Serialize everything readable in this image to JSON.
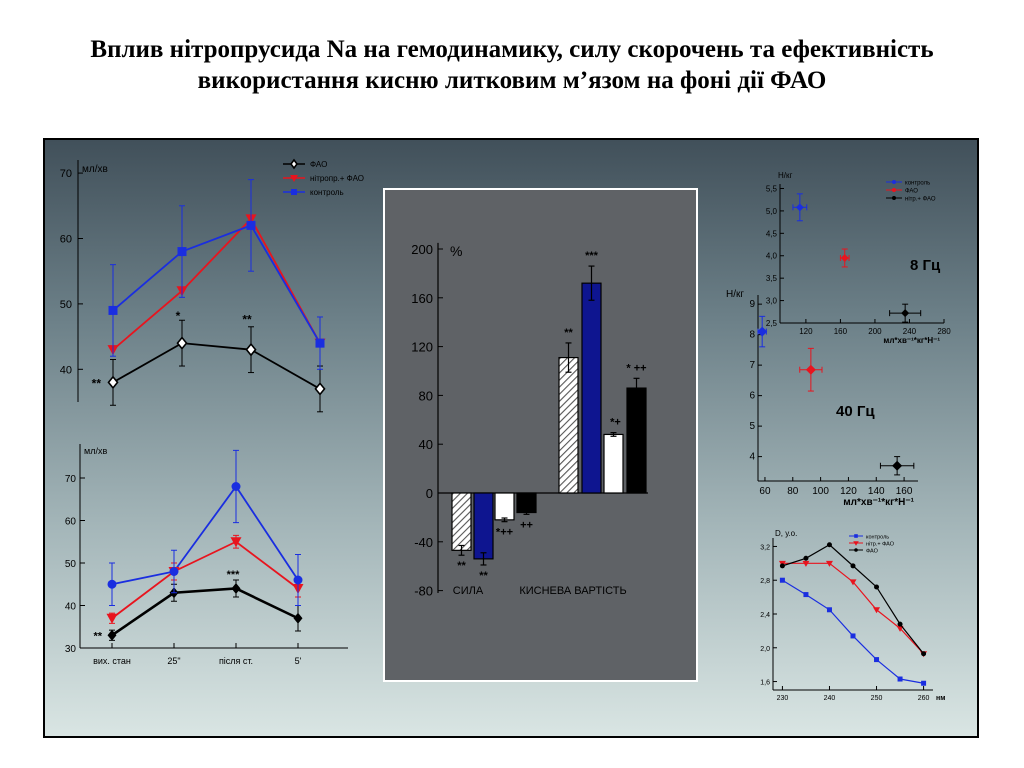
{
  "title": "Вплив нітропрусида Na на гемодинамику, силу скорочень та ефективність використання кисню литковим м’язом на фоні дії ФАО",
  "colors": {
    "fao": "#000000",
    "nitro": "#e8141e",
    "control": "#1a2ee0"
  },
  "chart_data": [
    {
      "id": "c1",
      "type": "line",
      "ylabel": "мл/хв",
      "ylim": [
        35,
        72
      ],
      "yticks": [
        40,
        50,
        60,
        70
      ],
      "x": [
        0,
        1,
        2,
        3
      ],
      "legend": [
        "ФАО",
        "нітропр.+ ФАО",
        "контроль"
      ],
      "series": [
        {
          "name": "ФАО",
          "color": "#000000",
          "marker": "diamond-open",
          "values": [
            38,
            44,
            43,
            37
          ],
          "err": [
            3.5,
            3.5,
            3.5,
            3.5
          ]
        },
        {
          "name": "нітропр.+ ФАО",
          "color": "#e8141e",
          "marker": "triangle",
          "values": [
            43,
            52,
            63,
            44
          ],
          "err": [
            0,
            0,
            0,
            0
          ]
        },
        {
          "name": "контроль",
          "color": "#1a2ee0",
          "marker": "square",
          "values": [
            49,
            58,
            62,
            44
          ],
          "err": [
            7,
            7,
            7,
            4
          ]
        }
      ],
      "annotations": [
        {
          "x": 0,
          "y": 38,
          "text": "**",
          "side": "left"
        },
        {
          "x": 1,
          "y": 47.5,
          "text": "*",
          "side": "top"
        },
        {
          "x": 2,
          "y": 47,
          "text": "**",
          "side": "top"
        }
      ]
    },
    {
      "id": "c2",
      "type": "line",
      "ylabel": "мл/хв",
      "ylim": [
        30,
        78
      ],
      "yticks": [
        30,
        40,
        50,
        60,
        70
      ],
      "x": [
        0,
        1,
        2,
        3
      ],
      "categories": [
        "вих. стан",
        "25\"",
        "після ст.",
        "5'"
      ],
      "series": [
        {
          "name": "",
          "color": "#000000",
          "marker": "diamond",
          "values": [
            33,
            43,
            44,
            37
          ],
          "err": [
            1.2,
            2,
            2,
            3
          ]
        },
        {
          "name": "",
          "color": "#e8141e",
          "marker": "triangle",
          "values": [
            37,
            48,
            55,
            44
          ],
          "err": [
            1.2,
            2,
            1.5,
            2
          ]
        },
        {
          "name": "",
          "color": "#1a2ee0",
          "marker": "circle",
          "values": [
            45,
            48,
            68,
            46
          ],
          "err": [
            5,
            5,
            8.5,
            6
          ]
        }
      ],
      "annotations": [
        {
          "x": 0,
          "y": 33,
          "text": "**",
          "side": "left"
        },
        {
          "x": 2,
          "y": 46.5,
          "text": "***",
          "side": "top"
        }
      ]
    },
    {
      "id": "c3",
      "type": "bar",
      "ylabel": "%",
      "ylim": [
        -82,
        205
      ],
      "yticks": [
        -80,
        -40,
        0,
        40,
        80,
        120,
        160,
        200
      ],
      "groups": [
        "СИЛА",
        "КИСНЕВА ВАРТІСТЬ"
      ],
      "bars": [
        {
          "group": 0,
          "fill": "hatch",
          "value": -47,
          "err": 4,
          "label": "**"
        },
        {
          "group": 0,
          "fill": "#0e1590",
          "value": -54,
          "err": 5,
          "label": "**"
        },
        {
          "group": 0,
          "fill": "#ffffff",
          "value": -22,
          "err": 1.5,
          "label": "*++"
        },
        {
          "group": 0,
          "fill": "#000000",
          "value": -16,
          "err": 1.5,
          "label": "++"
        },
        {
          "group": 1,
          "fill": "hatch",
          "value": 111,
          "err": 12,
          "label": "**"
        },
        {
          "group": 1,
          "fill": "#0e1590",
          "value": 172,
          "err": 14,
          "label": "***"
        },
        {
          "group": 1,
          "fill": "#ffffff",
          "value": 48,
          "err": 1.5,
          "label": "*+"
        },
        {
          "group": 1,
          "fill": "#000000",
          "value": 86,
          "err": 8,
          "label": "* ++"
        }
      ]
    },
    {
      "id": "c4",
      "type": "scatter",
      "ylabel": "Н/кг",
      "xlabel": "мл*хв⁻¹*кг*Н⁻¹",
      "xlim": [
        90,
        280
      ],
      "xticks": [
        120,
        160,
        200,
        240,
        280
      ],
      "ylim": [
        2.5,
        5.6
      ],
      "yticks": [
        2.5,
        3.0,
        3.5,
        4.0,
        4.5,
        5.0,
        5.5
      ],
      "legend": [
        "контроль",
        "ФАО",
        "нітр.+ ФАО"
      ],
      "note": "8 Гц",
      "points": [
        {
          "name": "контроль",
          "color": "#1a2ee0",
          "x": 113,
          "y": 5.08,
          "xerr": 8,
          "yerr": 0.3
        },
        {
          "name": "нітр.+ ФАО",
          "color": "#e8141e",
          "x": 165,
          "y": 3.95,
          "xerr": 5,
          "yerr": 0.2
        },
        {
          "name": "ФАО",
          "color": "#000000",
          "x": 235,
          "y": 2.72,
          "xerr": 18,
          "yerr": 0.2
        }
      ]
    },
    {
      "id": "c5",
      "type": "scatter",
      "ylabel": "Н/кг",
      "xlabel": "мл*хв⁻¹*кг*Н⁻¹",
      "xlim": [
        55,
        170
      ],
      "xticks": [
        60,
        80,
        100,
        120,
        140,
        160
      ],
      "ylim": [
        3.2,
        9.3
      ],
      "yticks": [
        4,
        5,
        6,
        7,
        8,
        9
      ],
      "note": "40 Гц",
      "points": [
        {
          "name": "",
          "color": "#1a2ee0",
          "x": 58,
          "y": 8.1,
          "xerr": 3,
          "yerr": 0.5
        },
        {
          "name": "",
          "color": "#e8141e",
          "x": 93,
          "y": 6.85,
          "xerr": 8,
          "yerr": 0.7
        },
        {
          "name": "",
          "color": "#000000",
          "x": 155,
          "y": 3.7,
          "xerr": 12,
          "yerr": 0.3
        }
      ]
    },
    {
      "id": "c6",
      "type": "line",
      "ylabel": "D, у.о.",
      "xlabel": "нм",
      "xlim": [
        228,
        262
      ],
      "xticks": [
        230,
        240,
        250,
        260
      ],
      "ylim": [
        1.5,
        3.3
      ],
      "yticks": [
        1.6,
        2.0,
        2.4,
        2.8,
        3.2
      ],
      "legend": [
        "контроль",
        "нітр.+ ФАО",
        "ФАО"
      ],
      "series": [
        {
          "name": "контроль",
          "color": "#1a2ee0",
          "marker": "square",
          "x": [
            230,
            235,
            240,
            245,
            250,
            255,
            260
          ],
          "values": [
            2.8,
            2.63,
            2.45,
            2.14,
            1.86,
            1.63,
            1.58
          ]
        },
        {
          "name": "нітр.+ ФАО",
          "color": "#e8141e",
          "marker": "triangle",
          "x": [
            230,
            235,
            240,
            245,
            250,
            255,
            260
          ],
          "values": [
            3.0,
            3.0,
            3.0,
            2.78,
            2.45,
            2.23,
            1.93
          ]
        },
        {
          "name": "ФАО",
          "color": "#000000",
          "marker": "circle",
          "x": [
            230,
            235,
            240,
            245,
            250,
            255,
            260
          ],
          "values": [
            2.97,
            3.06,
            3.22,
            2.97,
            2.72,
            2.28,
            1.93
          ]
        }
      ]
    }
  ]
}
